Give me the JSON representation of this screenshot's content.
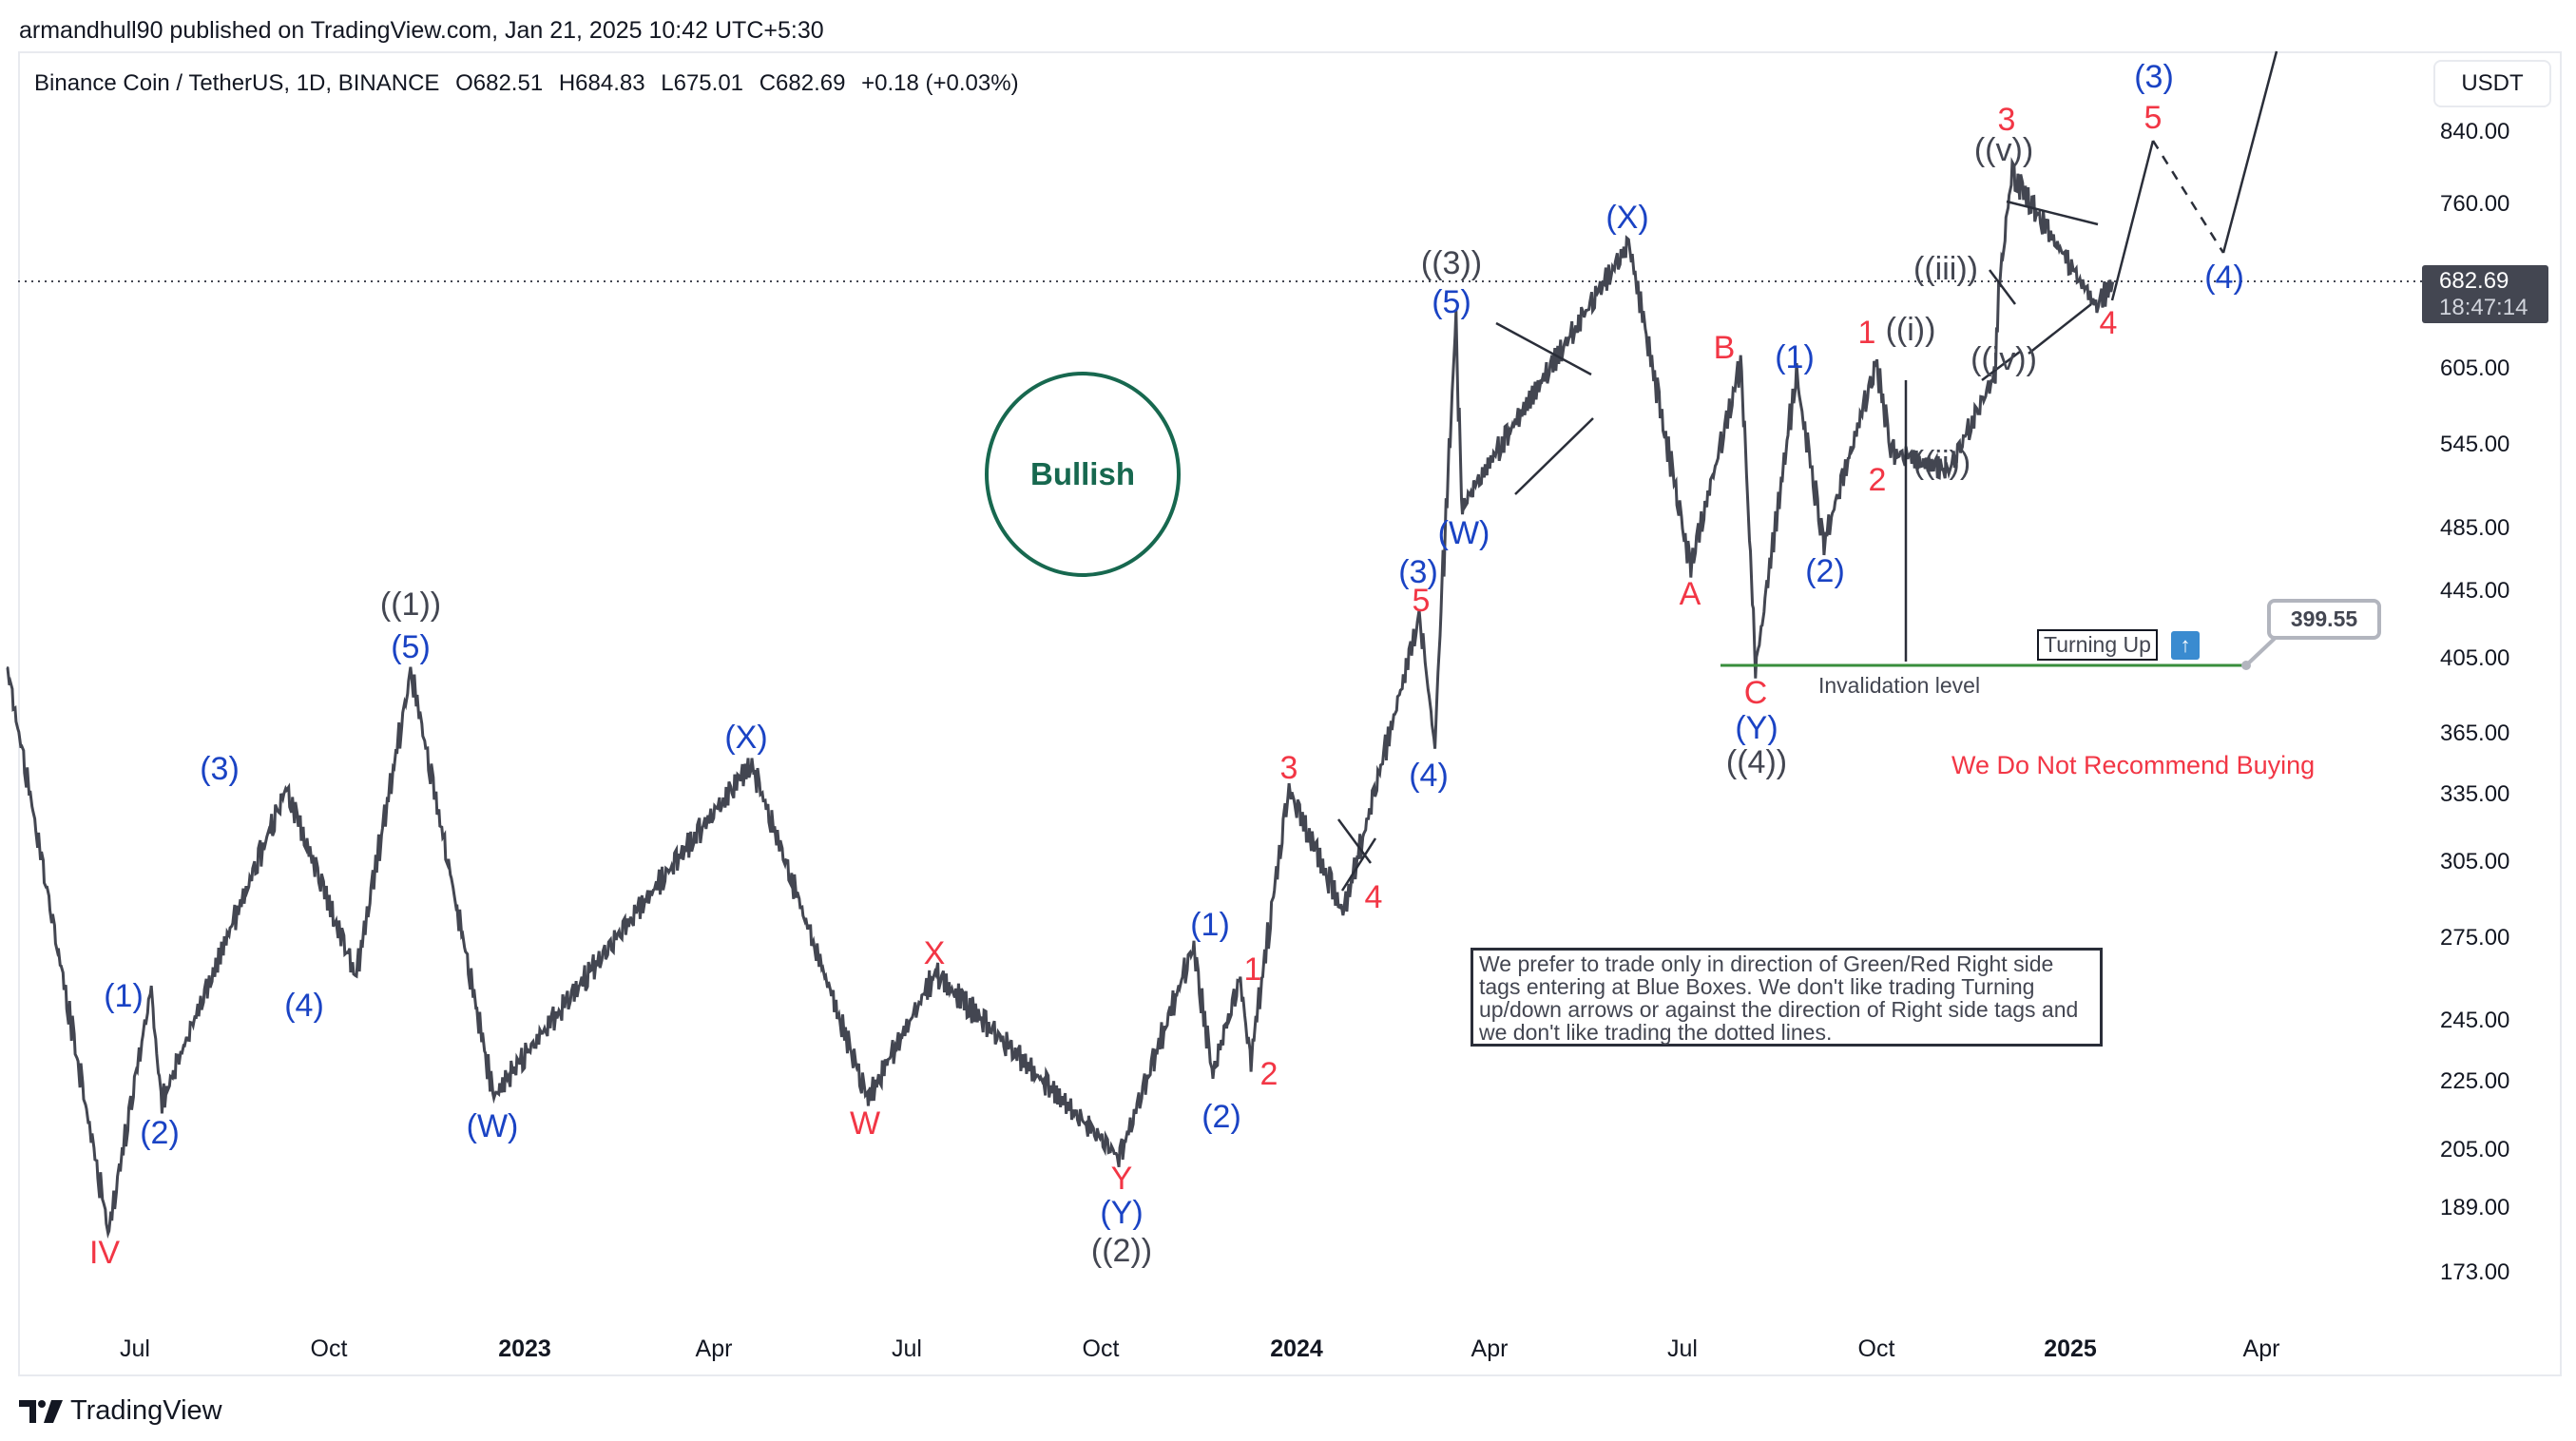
{
  "header": {
    "published": "armandhull90 published on TradingView.com, Jan 21, 2025 10:42 UTC+5:30"
  },
  "legend": {
    "symbol": "Binance Coin / TetherUS, 1D, BINANCE",
    "open": "O682.51",
    "high": "H684.83",
    "low": "L675.01",
    "close": "C682.69",
    "change": "+0.18 (+0.03%)"
  },
  "price_axis": {
    "currency": "USDT",
    "ticks": [
      "840.00",
      "760.00",
      "605.00",
      "545.00",
      "485.00",
      "445.00",
      "405.00",
      "365.00",
      "335.00",
      "305.00",
      "275.00",
      "245.00",
      "225.00",
      "205.00",
      "189.00",
      "173.00"
    ],
    "current_price": "682.69",
    "countdown": "18:47:14"
  },
  "time_axis": {
    "ticks": [
      "Jul",
      "Oct",
      "2023",
      "Apr",
      "Jul",
      "Oct",
      "2024",
      "Apr",
      "Jul",
      "Oct",
      "2025",
      "Apr"
    ]
  },
  "annotations": {
    "bullish": "Bullish",
    "note": "We prefer to trade only in direction of Green/Red Right side tags entering at Blue Boxes. We don't like trading Turning up/down arrows or against the direction of Right side tags and we don't like trading the dotted lines.",
    "turning_up": "Turning Up",
    "turning_icon": "turn-up-arrow-icon",
    "invalidation_label": "Invalidation level",
    "invalidation_price": "399.55",
    "warning": "We Do Not Recommend Buying",
    "colors": {
      "blue": "#1a43c4",
      "red": "#f23645",
      "gray": "#434651",
      "green": "#17684f",
      "invalidation_line": "#388e3c"
    }
  },
  "wave_labels": [
    {
      "text": "IV",
      "color": "red"
    },
    {
      "text": "(1)",
      "color": "blue"
    },
    {
      "text": "(2)",
      "color": "blue"
    },
    {
      "text": "(3)",
      "color": "blue"
    },
    {
      "text": "(4)",
      "color": "blue"
    },
    {
      "text": "((1))",
      "color": "gray"
    },
    {
      "text": "(5)",
      "color": "blue"
    },
    {
      "text": "(W)",
      "color": "blue"
    },
    {
      "text": "(X)",
      "color": "blue"
    },
    {
      "text": "W",
      "color": "red"
    },
    {
      "text": "X",
      "color": "red"
    },
    {
      "text": "Y",
      "color": "red"
    },
    {
      "text": "(Y)",
      "color": "blue"
    },
    {
      "text": "((2))",
      "color": "gray"
    },
    {
      "text": "(1)",
      "color": "blue"
    },
    {
      "text": "(2)",
      "color": "blue"
    },
    {
      "text": "1",
      "color": "red"
    },
    {
      "text": "2",
      "color": "red"
    },
    {
      "text": "3",
      "color": "red"
    },
    {
      "text": "4",
      "color": "red"
    },
    {
      "text": "5",
      "color": "red"
    },
    {
      "text": "(3)",
      "color": "blue"
    },
    {
      "text": "(4)",
      "color": "blue"
    },
    {
      "text": "((3))",
      "color": "gray"
    },
    {
      "text": "(5)",
      "color": "blue"
    },
    {
      "text": "(W)",
      "color": "blue"
    },
    {
      "text": "(X)",
      "color": "blue"
    },
    {
      "text": "A",
      "color": "red"
    },
    {
      "text": "B",
      "color": "red"
    },
    {
      "text": "C",
      "color": "red"
    },
    {
      "text": "(Y)",
      "color": "blue"
    },
    {
      "text": "((4))",
      "color": "gray"
    },
    {
      "text": "(1)",
      "color": "blue"
    },
    {
      "text": "(2)",
      "color": "blue"
    },
    {
      "text": "1",
      "color": "red"
    },
    {
      "text": "((i))",
      "color": "gray"
    },
    {
      "text": "2",
      "color": "red"
    },
    {
      "text": "((ii))",
      "color": "gray"
    },
    {
      "text": "((iii))",
      "color": "gray"
    },
    {
      "text": "((iv))",
      "color": "gray"
    },
    {
      "text": "3",
      "color": "red"
    },
    {
      "text": "((v))",
      "color": "gray"
    },
    {
      "text": "4",
      "color": "red"
    },
    {
      "text": "5",
      "color": "red"
    },
    {
      "text": "(3)",
      "color": "blue"
    },
    {
      "text": "(4)",
      "color": "blue"
    }
  ],
  "footer": {
    "brand": "TradingView"
  },
  "chart_data": {
    "type": "line",
    "title": "Binance Coin / TetherUS, 1D, BINANCE",
    "xlabel": "",
    "ylabel": "USDT",
    "scale": "log",
    "ylim": [
      160,
      900
    ],
    "x_ticks": [
      "Jul",
      "Oct",
      "2023",
      "Apr",
      "Jul",
      "Oct",
      "2024",
      "Apr",
      "Jul",
      "Oct",
      "2025",
      "Apr"
    ],
    "y_ticks": [
      840,
      760,
      605,
      545,
      485,
      445,
      405,
      365,
      335,
      305,
      275,
      245,
      225,
      205,
      189,
      173
    ],
    "last": {
      "open": 682.51,
      "high": 684.83,
      "low": 675.01,
      "close": 682.69,
      "change": 0.18,
      "change_pct": 0.03
    },
    "swing_points": [
      {
        "date": "2022-05",
        "price": 400,
        "label": ""
      },
      {
        "date": "2022-06-18",
        "price": 183,
        "label": "IV"
      },
      {
        "date": "2022-07-08",
        "price": 256,
        "label": "(1)"
      },
      {
        "date": "2022-07-13",
        "price": 219,
        "label": "(2)"
      },
      {
        "date": "2022-09-10",
        "price": 338,
        "label": "(3)"
      },
      {
        "date": "2022-10-13",
        "price": 261,
        "label": "(4)"
      },
      {
        "date": "2022-11-08",
        "price": 398,
        "label": "((1)) (5)"
      },
      {
        "date": "2022-12-17",
        "price": 221,
        "label": "(W)"
      },
      {
        "date": "2023-04-18",
        "price": 350,
        "label": "(X)"
      },
      {
        "date": "2023-06-12",
        "price": 220,
        "label": "W"
      },
      {
        "date": "2023-07-14",
        "price": 262,
        "label": "X"
      },
      {
        "date": "2023-10-09",
        "price": 203,
        "label": "((2)) (Y) Y"
      },
      {
        "date": "2023-11-13",
        "price": 272,
        "label": "(1)"
      },
      {
        "date": "2023-11-22",
        "price": 228,
        "label": "(2)"
      },
      {
        "date": "2023-12-05",
        "price": 260,
        "label": "1"
      },
      {
        "date": "2023-12-10",
        "price": 232,
        "label": "2"
      },
      {
        "date": "2023-12-28",
        "price": 338,
        "label": "3"
      },
      {
        "date": "2024-01-23",
        "price": 285,
        "label": "4"
      },
      {
        "date": "2024-02-28",
        "price": 430,
        "label": "5"
      },
      {
        "date": "2024-03-06",
        "price": 360,
        "label": "(4)"
      },
      {
        "date": "2024-03-16",
        "price": 645,
        "label": "((3)) (5)"
      },
      {
        "date": "2024-03-19",
        "price": 500,
        "label": "(W)"
      },
      {
        "date": "2024-06-06",
        "price": 720,
        "label": "(X)"
      },
      {
        "date": "2024-07-05",
        "price": 460,
        "label": "A"
      },
      {
        "date": "2024-07-29",
        "price": 610,
        "label": "B"
      },
      {
        "date": "2024-08-05",
        "price": 400,
        "label": "((4)) (Y) C"
      },
      {
        "date": "2024-08-24",
        "price": 600,
        "label": "(1)"
      },
      {
        "date": "2024-09-06",
        "price": 475,
        "label": "(2)"
      },
      {
        "date": "2024-10-01",
        "price": 610,
        "label": "1 ((i))"
      },
      {
        "date": "2024-10-08",
        "price": 540,
        "label": "2"
      },
      {
        "date": "2024-11-04",
        "price": 525,
        "label": "((ii))"
      },
      {
        "date": "2024-11-28",
        "price": 680,
        "label": "((iii))"
      },
      {
        "date": "2024-11-26",
        "price": 600,
        "label": "((iv))"
      },
      {
        "date": "2024-12-04",
        "price": 793,
        "label": "3 ((v))"
      },
      {
        "date": "2025-01-13",
        "price": 660,
        "label": "4"
      },
      {
        "date": "2025-01-21",
        "price": 682.69,
        "label": "current"
      }
    ],
    "projection": [
      {
        "date": "2025-01-15",
        "price": 660,
        "label": "4",
        "style": "solid"
      },
      {
        "date": "2025-02-18",
        "price": 830,
        "label": "5 / (3)",
        "style": "solid"
      },
      {
        "date": "2025-03-18",
        "price": 700,
        "label": "(4)",
        "style": "dashed"
      },
      {
        "date": "2025-04-10",
        "price": 900,
        "label": "",
        "style": "solid"
      }
    ],
    "horizontal_lines": [
      {
        "price": 399.55,
        "label": "Invalidation level",
        "color": "#388e3c"
      },
      {
        "price": 682.69,
        "label": "last price",
        "style": "dotted"
      }
    ]
  }
}
